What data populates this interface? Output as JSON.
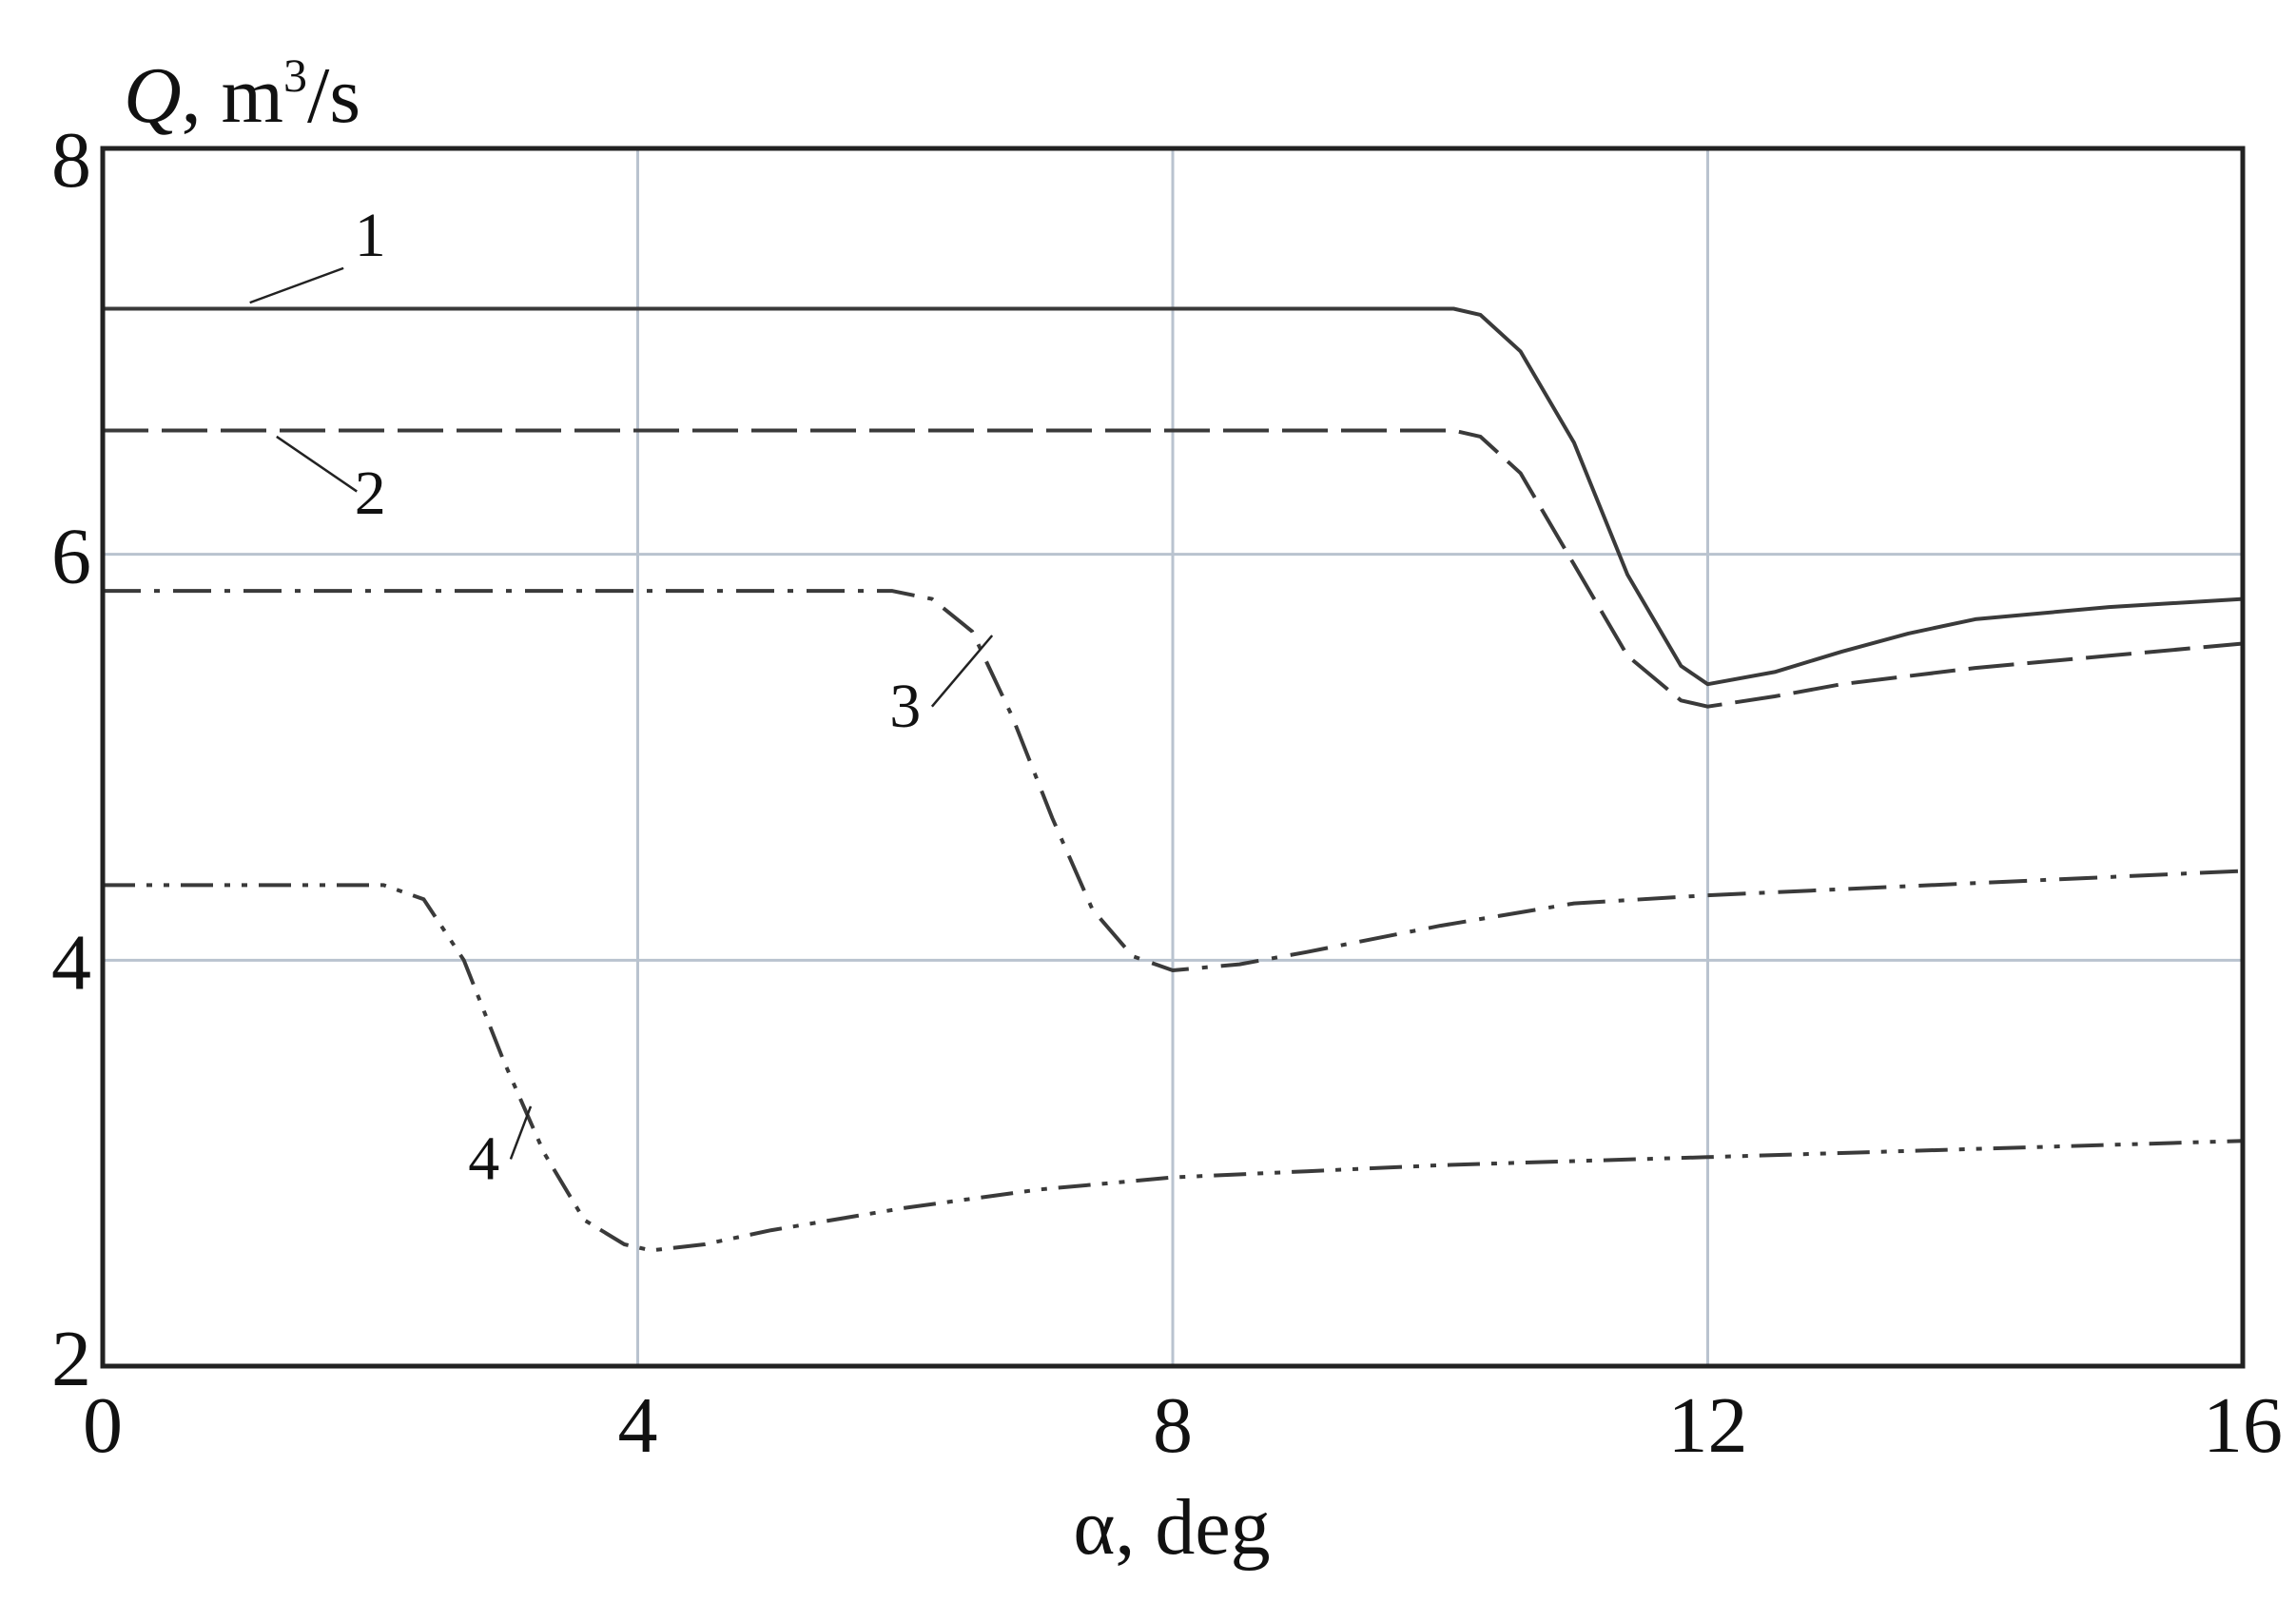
{
  "chart_data": {
    "type": "line",
    "xlabel": "α, deg",
    "ylabel": {
      "symbol": "Q",
      "unit_prefix": ", m",
      "unit_power": "3",
      "unit_suffix": "/s"
    },
    "xlim": [
      0,
      16
    ],
    "ylim": [
      2,
      8
    ],
    "x_ticks": [
      0,
      4,
      8,
      12,
      16
    ],
    "y_ticks": [
      2,
      4,
      6,
      8
    ],
    "grid": true,
    "colors": {
      "curve": "#3a3a3a",
      "grid": "#b9c3cf",
      "frame": "#222222"
    },
    "series": [
      {
        "label": "1",
        "dash": "solid",
        "x": [
          0,
          10.1,
          10.3,
          10.6,
          11.0,
          11.4,
          11.8,
          12.0,
          12.5,
          13.0,
          13.5,
          14.0,
          15.0,
          16.0
        ],
        "y": [
          7.21,
          7.21,
          7.18,
          7.0,
          6.55,
          5.9,
          5.45,
          5.36,
          5.42,
          5.52,
          5.61,
          5.68,
          5.74,
          5.78
        ]
      },
      {
        "label": "2",
        "dash": "long-dash",
        "x": [
          0,
          10.1,
          10.3,
          10.6,
          11.0,
          11.4,
          11.8,
          12.0,
          12.5,
          13.0,
          14.0,
          15.0,
          16.0
        ],
        "y": [
          6.61,
          6.61,
          6.58,
          6.4,
          5.95,
          5.5,
          5.28,
          5.25,
          5.3,
          5.36,
          5.44,
          5.5,
          5.56
        ]
      },
      {
        "label": "3",
        "dash": "dash-dot",
        "x": [
          0,
          5.9,
          6.2,
          6.5,
          6.8,
          7.1,
          7.4,
          7.7,
          8.0,
          8.5,
          9.0,
          10.0,
          11.0,
          12.0,
          13.0,
          14.0,
          15.0,
          16.0
        ],
        "y": [
          5.82,
          5.82,
          5.78,
          5.62,
          5.2,
          4.7,
          4.25,
          4.02,
          3.95,
          3.98,
          4.04,
          4.17,
          4.28,
          4.32,
          4.35,
          4.38,
          4.41,
          4.44
        ]
      },
      {
        "label": "4",
        "dash": "dash-dot-dot",
        "x": [
          0,
          2.1,
          2.4,
          2.7,
          3.0,
          3.3,
          3.6,
          3.9,
          4.1,
          4.5,
          5.0,
          6.0,
          7.0,
          8.0,
          9.0,
          10.0,
          11.0,
          12.0,
          13.0,
          14.0,
          15.0,
          16.0
        ],
        "y": [
          4.37,
          4.37,
          4.3,
          4.0,
          3.5,
          3.05,
          2.72,
          2.6,
          2.57,
          2.6,
          2.67,
          2.78,
          2.87,
          2.93,
          2.96,
          2.99,
          3.01,
          3.03,
          3.05,
          3.07,
          3.09,
          3.11
        ]
      }
    ],
    "labels": [
      {
        "text": "1",
        "text_x": 2.0,
        "text_y": 7.47,
        "leader_start": [
          1.8,
          7.41
        ],
        "leader_end": [
          1.1,
          7.24
        ]
      },
      {
        "text": "2",
        "text_x": 2.0,
        "text_y": 6.2,
        "leader_start": [
          1.9,
          6.31
        ],
        "leader_end": [
          1.3,
          6.58
        ]
      },
      {
        "text": "3",
        "text_x": 6.0,
        "text_y": 5.15,
        "leader_start": [
          6.2,
          5.25
        ],
        "leader_end": [
          6.65,
          5.6
        ]
      },
      {
        "text": "4",
        "text_x": 2.85,
        "text_y": 2.92,
        "leader_start": [
          3.05,
          3.02
        ],
        "leader_end": [
          3.2,
          3.28
        ]
      }
    ]
  }
}
